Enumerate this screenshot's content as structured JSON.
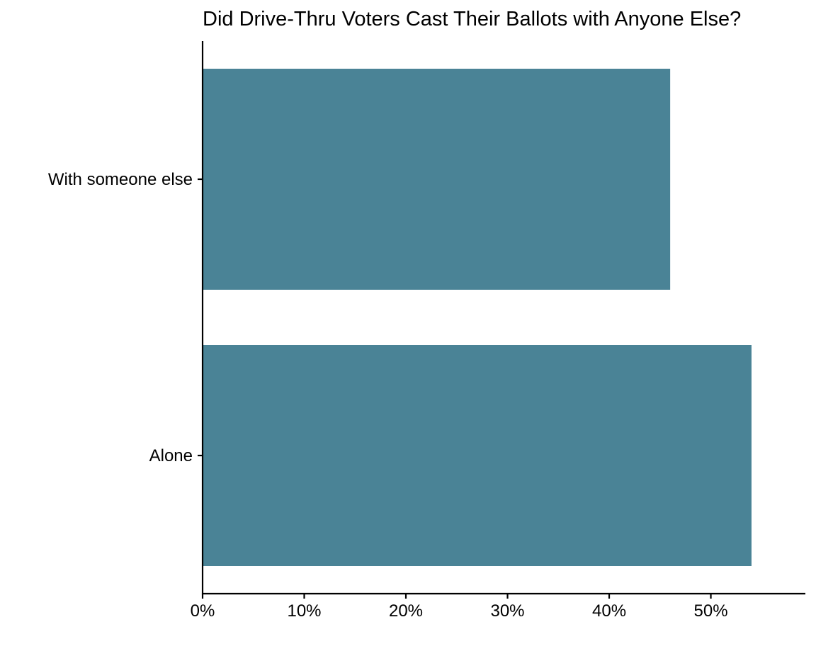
{
  "chart_data": {
    "type": "bar",
    "orientation": "horizontal",
    "title": "Did Drive-Thru Voters Cast Their Ballots with Anyone Else?",
    "xlabel": "",
    "ylabel": "",
    "categories": [
      "With someone else",
      "Alone"
    ],
    "values": [
      46,
      54
    ],
    "value_unit": "%",
    "xlim": [
      0,
      59.3
    ],
    "x_ticks": [
      0,
      10,
      20,
      30,
      40,
      50
    ],
    "x_tick_labels": [
      "0%",
      "10%",
      "20%",
      "30%",
      "40%",
      "50%"
    ],
    "bar_color": "#4A8396",
    "grid": false,
    "legend": "none"
  }
}
